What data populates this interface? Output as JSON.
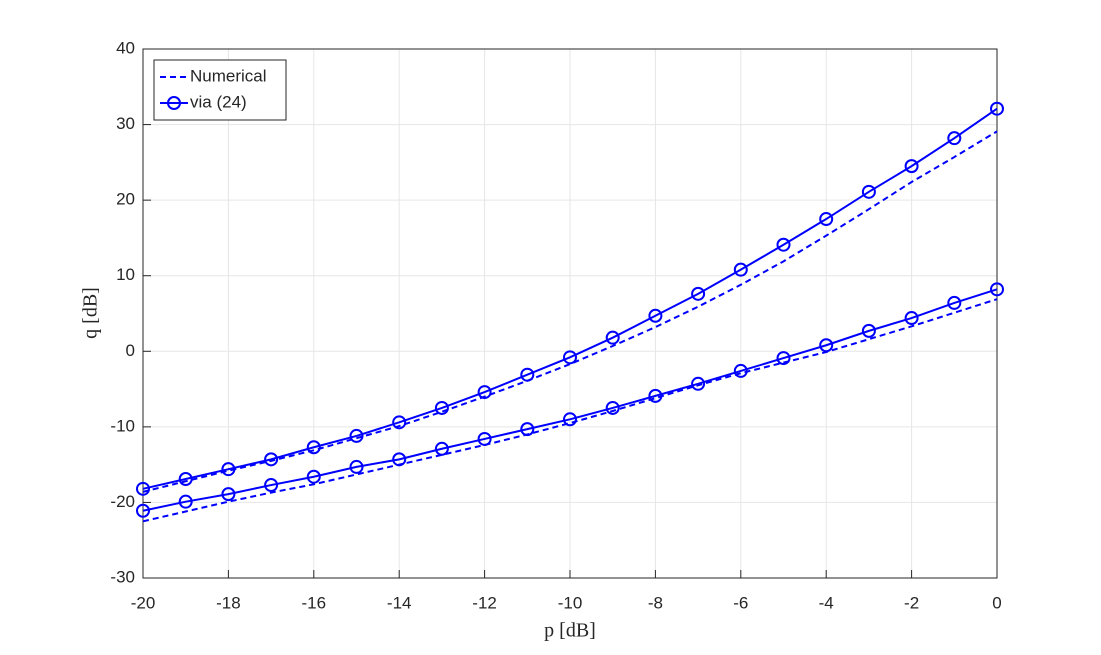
{
  "chart_data": {
    "type": "line",
    "x_label": "p [dB]",
    "y_label": "q [dB]",
    "x": [
      -20,
      -19,
      -18,
      -17,
      -16,
      -15,
      -14,
      -13,
      -12,
      -11,
      -10,
      -9,
      -8,
      -7,
      -6,
      -5,
      -4,
      -3,
      -2,
      -1,
      0
    ],
    "series": [
      {
        "name": "Numerical",
        "color": "#0000ff",
        "dashed": true,
        "values": [
          -18.6,
          -17.2,
          -15.8,
          -14.5,
          -13.1,
          -11.5,
          -9.9,
          -8.0,
          -6.0,
          -3.9,
          -1.7,
          0.7,
          3.2,
          5.9,
          8.8,
          11.9,
          15.3,
          18.8,
          22.4,
          25.7,
          29.1
        ]
      },
      {
        "name": "via (24)",
        "color": "#0000ff",
        "marker": "circle",
        "values": [
          -18.2,
          -16.9,
          -15.6,
          -14.3,
          -12.7,
          -11.2,
          -9.4,
          -7.5,
          -5.4,
          -3.1,
          -0.8,
          1.8,
          4.7,
          7.6,
          10.8,
          14.1,
          17.5,
          21.1,
          24.5,
          28.2,
          32.1
        ]
      },
      {
        "color": "#0000ff",
        "dashed": true,
        "values": [
          -22.5,
          -21.2,
          -19.9,
          -18.7,
          -17.6,
          -16.3,
          -15.0,
          -13.7,
          -12.4,
          -11.0,
          -9.5,
          -7.9,
          -6.2,
          -4.5,
          -2.9,
          -1.5,
          -0.1,
          1.6,
          3.3,
          5.1,
          6.9
        ]
      },
      {
        "color": "#0000ff",
        "marker": "circle",
        "values": [
          -21.1,
          -19.9,
          -18.9,
          -17.7,
          -16.6,
          -15.3,
          -14.3,
          -12.9,
          -11.6,
          -10.3,
          -9.0,
          -7.5,
          -5.9,
          -4.3,
          -2.6,
          -0.9,
          0.8,
          2.7,
          4.4,
          6.4,
          8.2
        ]
      }
    ],
    "xlim": [
      -20,
      0
    ],
    "xticks": [
      -20,
      -18,
      -16,
      -14,
      -12,
      -10,
      -8,
      -6,
      -4,
      -2,
      0
    ],
    "ylim": [
      -30,
      40
    ],
    "yticks": [
      -30,
      -20,
      -10,
      0,
      10,
      20,
      30,
      40
    ],
    "grid": true,
    "legend": "upper-left"
  }
}
